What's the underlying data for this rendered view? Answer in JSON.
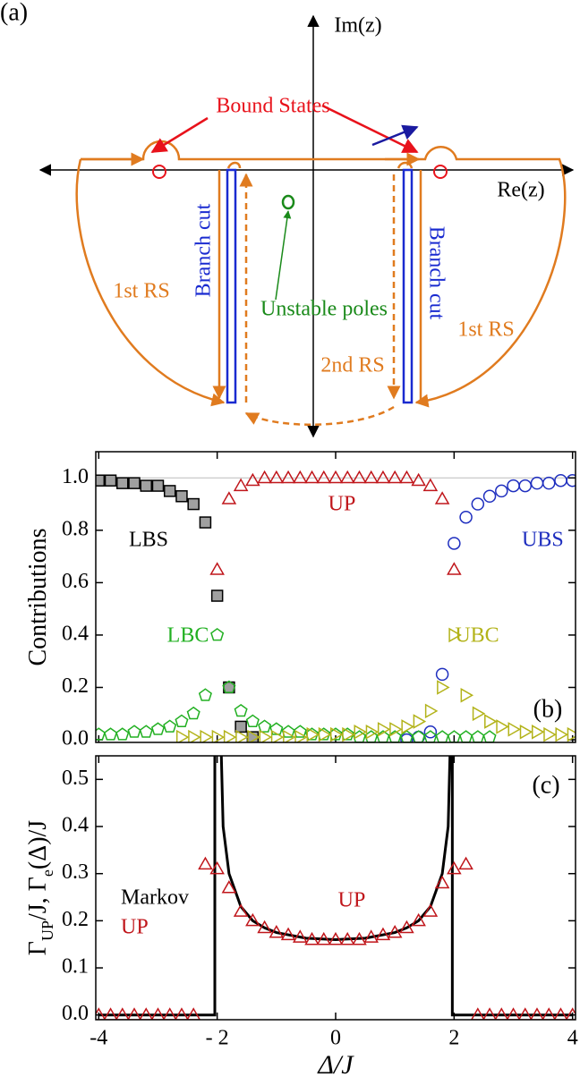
{
  "diagram": {
    "panel": "(a)",
    "im_label": "Im(z)",
    "re_label": "Re(z)",
    "bound_states": "Bound States",
    "branch_cut_left": "Branch cut",
    "branch_cut_right": "Branch cut",
    "unstable_poles": "Unstable poles",
    "first_rs_left": "1st RS",
    "first_rs_right": "1st RS",
    "second_rs": "2nd RS"
  },
  "chart_data": [
    {
      "type": "scatter",
      "y_label": [
        "Contributions"
      ],
      "x": [
        -4,
        -3.8,
        -3.6,
        -3.4,
        -3.2,
        -3,
        -2.8,
        -2.6,
        -2.4,
        -2.2,
        -2,
        -1.8,
        -1.6,
        -1.4,
        -1.2,
        -1,
        -0.8,
        -0.6,
        -0.4,
        -0.2,
        0,
        0.2,
        0.4,
        0.6,
        0.8,
        1,
        1.2,
        1.4,
        1.6,
        1.8,
        2,
        2.2,
        2.4,
        2.6,
        2.8,
        3,
        3.2,
        3.4,
        3.6,
        3.8,
        4
      ],
      "xlim": [
        -4.05,
        4.05
      ],
      "xticks": [
        -4,
        -2,
        0,
        2,
        4
      ],
      "ylim": [
        -0.01,
        1.1
      ],
      "yticks": [
        {
          "value": 0,
          "label": "0.0"
        },
        0.2,
        0.4,
        0.6,
        0.8,
        {
          "value": 1,
          "label": "1.0"
        }
      ],
      "reference_line": 1,
      "series": [
        {
          "name": "LBS",
          "color": "#000000",
          "fill": "#a0a0a0",
          "marker": "square",
          "values": [
            0.99,
            0.99,
            0.98,
            0.98,
            0.97,
            0.97,
            0.95,
            0.93,
            0.9,
            0.83,
            0.55,
            0.2,
            0.05,
            0.01,
            null,
            null,
            null,
            null,
            null,
            null,
            null,
            null,
            null,
            null,
            null,
            null,
            null,
            null,
            null,
            null,
            null,
            null,
            null,
            null,
            null,
            null,
            null,
            null,
            null,
            null,
            null
          ]
        },
        {
          "name": "UP",
          "color": "#c0161b",
          "marker": "triangle",
          "values": [
            null,
            null,
            null,
            null,
            null,
            null,
            null,
            null,
            null,
            null,
            0.65,
            0.92,
            0.97,
            0.99,
            1,
            1,
            1,
            1,
            1,
            1,
            1,
            1,
            1,
            1,
            1,
            1,
            1,
            0.99,
            0.97,
            0.92,
            0.65,
            null,
            null,
            null,
            null,
            null,
            null,
            null,
            null,
            null,
            null
          ]
        },
        {
          "name": "UBS",
          "color": "#1f2fbf",
          "marker": "circle",
          "values": [
            null,
            null,
            null,
            null,
            null,
            null,
            null,
            null,
            null,
            null,
            null,
            null,
            null,
            null,
            null,
            null,
            null,
            null,
            null,
            null,
            null,
            null,
            null,
            null,
            null,
            null,
            0,
            0.01,
            0.03,
            0.25,
            0.75,
            0.85,
            0.9,
            0.93,
            0.95,
            0.97,
            0.97,
            0.98,
            0.98,
            0.99,
            0.99
          ]
        },
        {
          "name": "LBC",
          "color": "#22b022",
          "marker": "pentagon",
          "values": [
            0.02,
            0.02,
            0.02,
            0.03,
            0.03,
            0.04,
            0.05,
            0.07,
            0.1,
            0.17,
            0.4,
            0.2,
            0.11,
            0.07,
            0.05,
            0.04,
            0.03,
            0.03,
            0.02,
            0.02,
            0.02,
            0.02,
            0.01,
            0.01,
            0.01,
            0.01,
            0.01,
            0.01,
            0.01,
            0.01,
            0.01,
            0.01,
            0.01,
            0.01,
            null,
            null,
            null,
            null,
            null,
            null,
            null
          ]
        },
        {
          "name": "UBC",
          "color": "#b3b31a",
          "marker": "triangle-right",
          "values": [
            null,
            null,
            null,
            null,
            null,
            null,
            null,
            0.01,
            0.01,
            0.01,
            0.01,
            0.01,
            0.01,
            0.01,
            0.01,
            0.01,
            0.01,
            0.01,
            0.02,
            0.02,
            0.02,
            0.02,
            0.03,
            0.03,
            0.04,
            0.04,
            0.05,
            0.07,
            0.11,
            0.2,
            0.4,
            0.17,
            0.1,
            0.07,
            0.05,
            0.04,
            0.03,
            0.03,
            0.02,
            0.02,
            0.02
          ]
        }
      ],
      "annotations": [
        "(b)"
      ]
    },
    {
      "type": "line_scatter",
      "y_label": [
        "Γ",
        "UP",
        "/J, Γ",
        "e",
        "(Δ)/J"
      ],
      "x_label": "Δ/J",
      "xlim": [
        -4.05,
        4.05
      ],
      "xticks": [
        -4,
        {
          "value": -2,
          "label": "- 2"
        },
        0,
        2,
        4
      ],
      "ylim": [
        -0.01,
        0.55
      ],
      "yticks": [
        {
          "value": 0,
          "label": "0.0"
        },
        0.1,
        0.2,
        0.3,
        0.4,
        0.5
      ],
      "series": [
        {
          "name": "Markov",
          "color": "#000000",
          "kind": "line",
          "x": [
            -4,
            -2.04,
            -2.04,
            -2,
            -1.94,
            -1.9,
            -1.8,
            -1.6,
            -1.4,
            -1.2,
            -1,
            -0.5,
            0,
            0.5,
            1,
            1.2,
            1.4,
            1.6,
            1.8,
            1.9,
            1.94,
            1.97,
            1.97,
            1.97,
            4
          ],
          "values": [
            0,
            0,
            0.6,
            null,
            0.6,
            0.4,
            0.3,
            0.23,
            0.2,
            0.185,
            0.175,
            0.163,
            0.16,
            0.163,
            0.175,
            0.185,
            0.2,
            0.23,
            0.3,
            0.4,
            0.6,
            null,
            0.6,
            0,
            0
          ]
        },
        {
          "name": "UP",
          "color": "#c0161b",
          "kind": "marker",
          "marker": "triangle",
          "x": [
            -4,
            -3.8,
            -3.6,
            -3.4,
            -3.2,
            -3,
            -2.8,
            -2.6,
            -2.4,
            -2.2,
            -2,
            -1.8,
            -1.6,
            -1.4,
            -1.2,
            -1,
            -0.8,
            -0.6,
            -0.4,
            -0.2,
            0,
            0.2,
            0.4,
            0.6,
            0.8,
            1,
            1.2,
            1.4,
            1.6,
            1.8,
            2,
            2.2,
            2.4,
            2.6,
            2.8,
            3,
            3.2,
            3.4,
            3.6,
            3.8,
            4
          ],
          "values": [
            0,
            0,
            0,
            0,
            0,
            0,
            0,
            0,
            0,
            0.32,
            0.31,
            0.27,
            0.22,
            0.2,
            0.185,
            0.175,
            0.17,
            0.165,
            0.16,
            0.16,
            0.16,
            0.16,
            0.16,
            0.165,
            0.17,
            0.175,
            0.185,
            0.2,
            0.22,
            0.28,
            0.31,
            0.32,
            0,
            0,
            0,
            0,
            0,
            0,
            0,
            0,
            0
          ]
        }
      ],
      "annotations": [
        "UP",
        "(c)"
      ]
    }
  ]
}
